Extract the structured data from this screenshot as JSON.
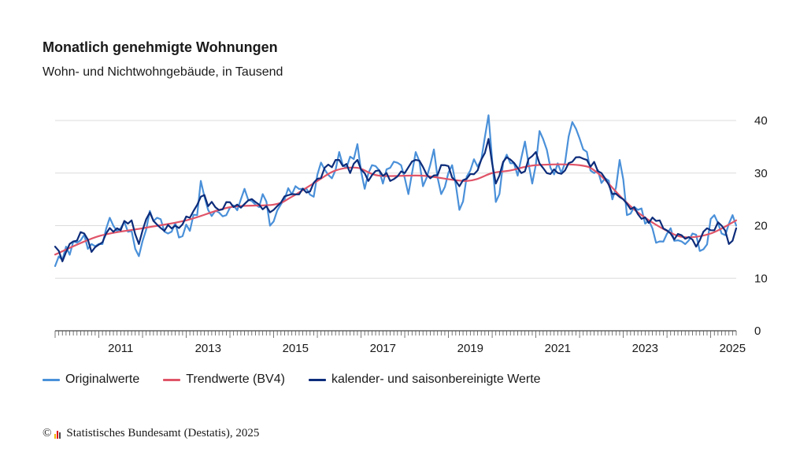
{
  "header": {
    "title": "Monatlich genehmigte Wohnungen",
    "subtitle": "Wohn- und Nichtwohngebäude, in Tausend"
  },
  "source": {
    "copyright_symbol": "©",
    "text": "Statistisches Bundesamt (Destatis), 2025",
    "logo_colors": [
      "#f2b705",
      "#e3000f",
      "#4a4a4a"
    ]
  },
  "legend": [
    {
      "name": "Originalwerte",
      "color": "#4a90d9"
    },
    {
      "name": "Trendwerte (BV4)",
      "color": "#e05468"
    },
    {
      "name": "kalender- und saisonbereinigte Werte",
      "color": "#0d2c7a"
    }
  ],
  "chart_data": {
    "type": "line",
    "title": "Monatlich genehmigte Wohnungen",
    "subtitle": "Wohn- und Nichtwohngebäude, in Tausend",
    "x_start": "2010-01",
    "x_end": "2025-08",
    "x_tick_labels": [
      "2011",
      "2013",
      "2015",
      "2017",
      "2019",
      "2021",
      "2023",
      "2025"
    ],
    "y_ticks": [
      0,
      10,
      20,
      30,
      40
    ],
    "ylim": [
      0,
      40
    ],
    "y_axis_side": "right",
    "grid": true,
    "legend_position": "bottom",
    "series": [
      {
        "name": "Originalwerte",
        "color": "#4a90d9",
        "anchors": [
          [
            "2010-01",
            12.3
          ],
          [
            "2010-03",
            13.5
          ],
          [
            "2010-06",
            17.0
          ],
          [
            "2010-08",
            17.2
          ],
          [
            "2010-11",
            16.5
          ],
          [
            "2011-02",
            16.5
          ],
          [
            "2011-04",
            21.5
          ],
          [
            "2011-07",
            19.5
          ],
          [
            "2011-10",
            19.0
          ],
          [
            "2011-12",
            14.2
          ],
          [
            "2012-03",
            22.8
          ],
          [
            "2012-05",
            21.5
          ],
          [
            "2012-08",
            18.5
          ],
          [
            "2012-10",
            20.5
          ],
          [
            "2012-12",
            18.0
          ],
          [
            "2013-04",
            22.0
          ],
          [
            "2013-05",
            28.5
          ],
          [
            "2013-07",
            23.0
          ],
          [
            "2013-10",
            22.5
          ],
          [
            "2013-12",
            22.0
          ],
          [
            "2014-04",
            25.0
          ],
          [
            "2014-05",
            27.0
          ],
          [
            "2014-08",
            24.0
          ],
          [
            "2014-10",
            26.0
          ],
          [
            "2014-12",
            20.0
          ],
          [
            "2015-04",
            25.0
          ],
          [
            "2015-07",
            27.5
          ],
          [
            "2015-10",
            27.0
          ],
          [
            "2015-12",
            25.5
          ],
          [
            "2016-02",
            32.0
          ],
          [
            "2016-05",
            29.0
          ],
          [
            "2016-07",
            34.0
          ],
          [
            "2016-09",
            31.0
          ],
          [
            "2016-12",
            35.5
          ],
          [
            "2017-02",
            27.0
          ],
          [
            "2017-04",
            31.5
          ],
          [
            "2017-07",
            28.0
          ],
          [
            "2017-09",
            31.0
          ],
          [
            "2017-12",
            31.5
          ],
          [
            "2018-02",
            26.0
          ],
          [
            "2018-04",
            34.0
          ],
          [
            "2018-06",
            27.5
          ],
          [
            "2018-09",
            34.5
          ],
          [
            "2018-11",
            26.0
          ],
          [
            "2019-02",
            31.5
          ],
          [
            "2019-04",
            23.0
          ],
          [
            "2019-07",
            30.5
          ],
          [
            "2019-10",
            32.5
          ],
          [
            "2019-12",
            41.0
          ],
          [
            "2020-02",
            24.5
          ],
          [
            "2020-05",
            33.5
          ],
          [
            "2020-08",
            29.5
          ],
          [
            "2020-10",
            36.0
          ],
          [
            "2020-12",
            28.0
          ],
          [
            "2021-02",
            38.0
          ],
          [
            "2021-05",
            31.0
          ],
          [
            "2021-08",
            30.0
          ],
          [
            "2021-11",
            39.7
          ],
          [
            "2022-02",
            34.5
          ],
          [
            "2022-05",
            30.0
          ],
          [
            "2022-08",
            29.0
          ],
          [
            "2022-10",
            25.0
          ],
          [
            "2022-12",
            32.5
          ],
          [
            "2023-02",
            22.0
          ],
          [
            "2023-05",
            23.0
          ],
          [
            "2023-08",
            21.0
          ],
          [
            "2023-11",
            17.0
          ],
          [
            "2024-02",
            19.5
          ],
          [
            "2024-05",
            17.0
          ],
          [
            "2024-08",
            18.5
          ],
          [
            "2024-11",
            15.5
          ],
          [
            "2025-02",
            22.0
          ],
          [
            "2025-04",
            18.5
          ],
          [
            "2025-07",
            22.0
          ],
          [
            "2025-08",
            20.0
          ]
        ]
      },
      {
        "name": "Trendwerte (BV4)",
        "color": "#e05468",
        "anchors": [
          [
            "2010-01",
            14.5
          ],
          [
            "2011-01",
            18.0
          ],
          [
            "2012-01",
            19.5
          ],
          [
            "2013-01",
            21.0
          ],
          [
            "2014-01",
            23.5
          ],
          [
            "2015-01",
            24.0
          ],
          [
            "2015-06",
            25.5
          ],
          [
            "2016-01",
            28.5
          ],
          [
            "2016-06",
            30.5
          ],
          [
            "2016-12",
            31.0
          ],
          [
            "2017-06",
            29.5
          ],
          [
            "2018-06",
            29.5
          ],
          [
            "2019-06",
            28.5
          ],
          [
            "2020-01",
            30.0
          ],
          [
            "2020-06",
            30.5
          ],
          [
            "2021-01",
            31.5
          ],
          [
            "2022-01",
            31.5
          ],
          [
            "2022-06",
            30.0
          ],
          [
            "2023-01",
            25.0
          ],
          [
            "2023-06",
            22.0
          ],
          [
            "2024-01",
            19.0
          ],
          [
            "2024-06",
            17.8
          ],
          [
            "2025-01",
            18.5
          ],
          [
            "2025-08",
            21.0
          ]
        ]
      },
      {
        "name": "kalender- und saisonbereinigte Werte",
        "color": "#0d2c7a",
        "anchors": [
          [
            "2010-01",
            16.0
          ],
          [
            "2010-03",
            13.2
          ],
          [
            "2010-06",
            17.0
          ],
          [
            "2010-09",
            18.5
          ],
          [
            "2010-11",
            15.0
          ],
          [
            "2011-03",
            18.5
          ],
          [
            "2011-06",
            19.5
          ],
          [
            "2011-10",
            21.0
          ],
          [
            "2011-12",
            16.5
          ],
          [
            "2012-03",
            22.5
          ],
          [
            "2012-07",
            19.0
          ],
          [
            "2012-10",
            20.0
          ],
          [
            "2013-02",
            21.5
          ],
          [
            "2013-05",
            25.5
          ],
          [
            "2013-09",
            23.5
          ],
          [
            "2014-03",
            24.0
          ],
          [
            "2014-08",
            24.5
          ],
          [
            "2015-01",
            23.0
          ],
          [
            "2015-06",
            26.0
          ],
          [
            "2015-11",
            26.5
          ],
          [
            "2016-03",
            31.0
          ],
          [
            "2016-07",
            32.5
          ],
          [
            "2016-10",
            30.0
          ],
          [
            "2016-12",
            32.5
          ],
          [
            "2017-03",
            28.5
          ],
          [
            "2017-06",
            30.5
          ],
          [
            "2017-09",
            28.5
          ],
          [
            "2018-01",
            30.0
          ],
          [
            "2018-04",
            32.5
          ],
          [
            "2018-08",
            29.0
          ],
          [
            "2018-12",
            31.5
          ],
          [
            "2019-04",
            27.5
          ],
          [
            "2019-09",
            30.5
          ],
          [
            "2019-12",
            36.5
          ],
          [
            "2020-02",
            28.0
          ],
          [
            "2020-05",
            33.0
          ],
          [
            "2020-09",
            30.0
          ],
          [
            "2021-01",
            34.0
          ],
          [
            "2021-04",
            30.0
          ],
          [
            "2021-09",
            30.5
          ],
          [
            "2021-12",
            33.0
          ],
          [
            "2022-03",
            32.5
          ],
          [
            "2022-07",
            30.0
          ],
          [
            "2022-10",
            26.0
          ],
          [
            "2023-01",
            25.0
          ],
          [
            "2023-04",
            23.5
          ],
          [
            "2023-08",
            20.5
          ],
          [
            "2023-11",
            21.0
          ],
          [
            "2024-02",
            18.5
          ],
          [
            "2024-06",
            17.5
          ],
          [
            "2024-09",
            16.0
          ],
          [
            "2024-12",
            19.5
          ],
          [
            "2025-04",
            20.0
          ],
          [
            "2025-06",
            16.5
          ],
          [
            "2025-08",
            19.5
          ]
        ]
      }
    ]
  }
}
